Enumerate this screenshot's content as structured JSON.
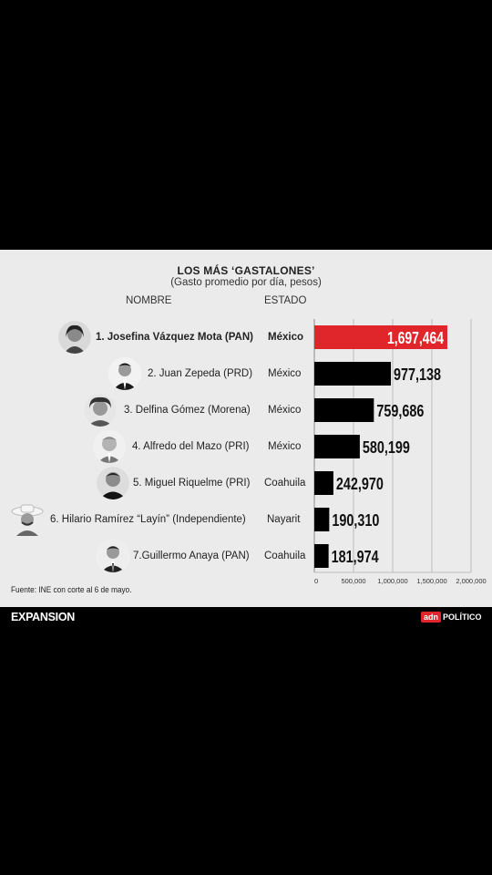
{
  "title": "LOS MÁS ‘GASTALONES’",
  "subtitle": "(Gasto promedio por día, pesos)",
  "columns": {
    "nombre": "NOMBRE",
    "estado": "ESTADO"
  },
  "rows": [
    {
      "name": "1. Josefina Vázquez Mota (PAN)",
      "state": "México",
      "avatar": "portrait-woman-dark-hair-icon"
    },
    {
      "name": "2. Juan Zepeda (PRD)",
      "state": "México",
      "avatar": "portrait-man-suit-icon"
    },
    {
      "name": "3. Delfina Gómez (Morena)",
      "state": "México",
      "avatar": "portrait-woman-curly-hair-icon"
    },
    {
      "name": "4. Alfredo del Mazo (PRI)",
      "state": "México",
      "avatar": "portrait-man-gray-hair-icon"
    },
    {
      "name": "5. Miguel Riquelme (PRI)",
      "state": "Coahuila",
      "avatar": "portrait-man-dark-suit-icon"
    },
    {
      "name": "6. Hilario Ramírez “Layín” (Independiente)",
      "state": "Nayarit",
      "avatar": "portrait-man-cowboy-hat-icon"
    },
    {
      "name": "7.Guillermo Anaya (PAN)",
      "state": "Coahuila",
      "avatar": "portrait-man-tie-icon"
    }
  ],
  "chart_data": {
    "type": "bar",
    "orientation": "horizontal",
    "title": "LOS MÁS ‘GASTALONES’",
    "subtitle": "(Gasto promedio por día, pesos)",
    "categories": [
      "1. Josefina Vázquez Mota (PAN)",
      "2. Juan Zepeda (PRD)",
      "3. Delfina Gómez (Morena)",
      "4. Alfredo del Mazo (PRI)",
      "5. Miguel Riquelme (PRI)",
      "6. Hilario Ramírez “Layín” (Independiente)",
      "7.Guillermo Anaya (PAN)"
    ],
    "values": [
      1697464,
      977138,
      759686,
      580199,
      242970,
      190310,
      181974
    ],
    "value_labels": [
      "1,697,464",
      "977,138",
      "759,686",
      "580,199",
      "242,970",
      "190,310",
      "181,974"
    ],
    "xlim": [
      0,
      2000000
    ],
    "xticks": [
      0,
      500000,
      1000000,
      1500000,
      2000000
    ],
    "xtick_labels": [
      "0",
      "500,000",
      "1,000,000",
      "1,500,000",
      "2,000,000"
    ],
    "grid": true,
    "colors": {
      "highlight": "#e0262a",
      "bars": "#000000",
      "grid": "#bcbcbc"
    },
    "highlight_index": 0
  },
  "source": "Fuente: INE con corte al 6 de mayo.",
  "brand": {
    "left": "EXPANSION",
    "right_mark": "adn",
    "right_text": "POLÍTICO"
  }
}
